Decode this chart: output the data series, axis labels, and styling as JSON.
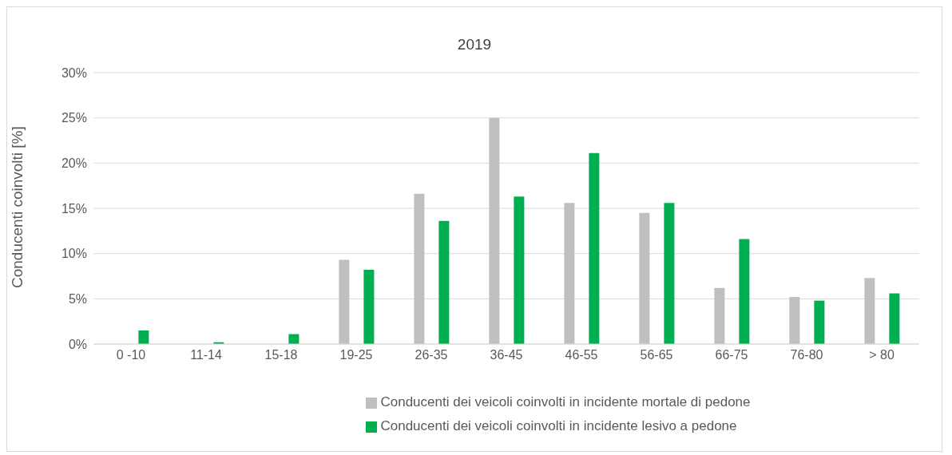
{
  "chart_data": {
    "type": "bar",
    "title": "2019",
    "ylabel": "Conducenti coinvolti [%]",
    "categories": [
      "0 -10",
      "11-14",
      "15-18",
      "19-25",
      "26-35",
      "36-45",
      "46-55",
      "56-65",
      "66-75",
      "76-80",
      "> 80"
    ],
    "series": [
      {
        "name": "Conducenti dei veicoli coinvolti in incidente mortale di pedone",
        "color": "#bfbfbf",
        "values": [
          0,
          0,
          0,
          9.3,
          16.6,
          25.0,
          15.6,
          14.5,
          6.2,
          5.2,
          7.3
        ]
      },
      {
        "name": "Conducenti dei veicoli coinvolti in incidente lesivo a pedone",
        "color": "#00b050",
        "values": [
          1.5,
          0.2,
          1.1,
          8.2,
          13.6,
          16.3,
          21.1,
          15.6,
          11.6,
          4.8,
          5.6
        ]
      }
    ],
    "ylim": [
      0,
      30
    ],
    "yticks": [
      {
        "value": 0,
        "label": "0%"
      },
      {
        "value": 5,
        "label": "5%"
      },
      {
        "value": 10,
        "label": "10%"
      },
      {
        "value": 15,
        "label": "15%"
      },
      {
        "value": 20,
        "label": "20%"
      },
      {
        "value": 25,
        "label": "25%"
      },
      {
        "value": 30,
        "label": "30%"
      }
    ],
    "grid": "y",
    "legend": "bottom"
  }
}
